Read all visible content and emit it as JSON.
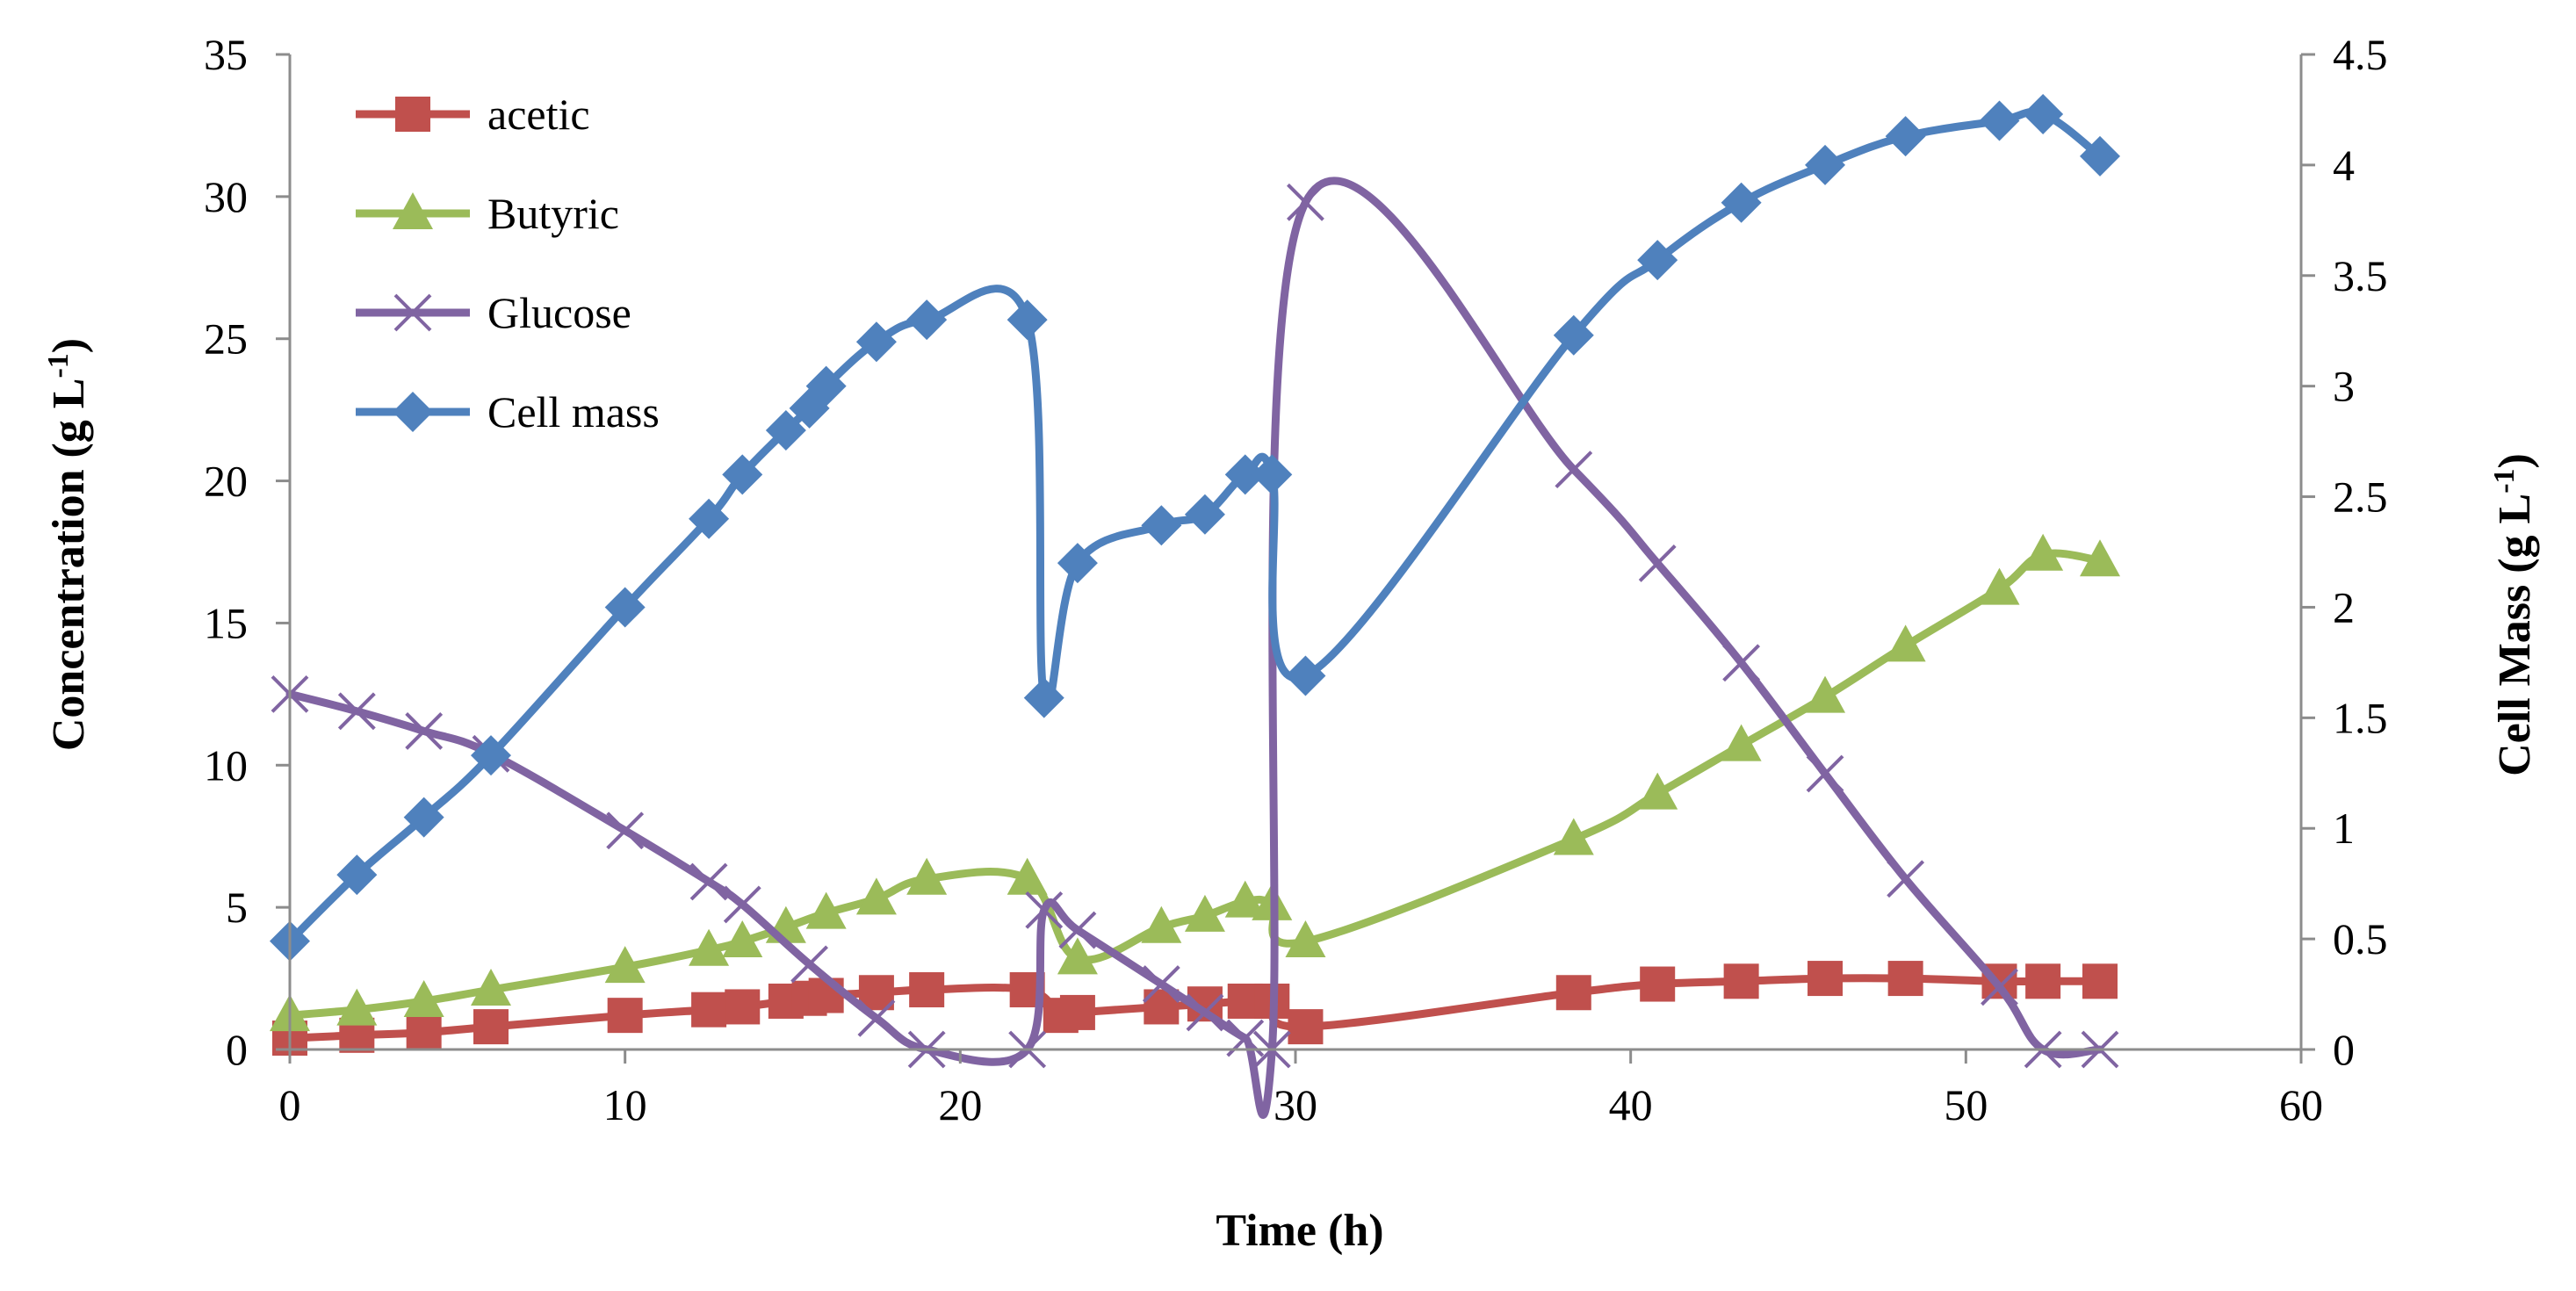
{
  "chart_data": {
    "type": "line",
    "xlabel": "Time (h)",
    "ylabel_left": {
      "main": "Concentration (g L",
      "sup": "-1",
      "end": ")"
    },
    "ylabel_right": {
      "main": "Cell Mass (g  L",
      "sup": "-1",
      "end": ")"
    },
    "xlim": [
      0,
      60
    ],
    "ylim_left": [
      0,
      35
    ],
    "ylim_right": [
      0,
      4.5
    ],
    "x_ticks": [
      "0",
      "10",
      "20",
      "30",
      "40",
      "50",
      "60"
    ],
    "y_left_ticks": [
      "0",
      "5",
      "10",
      "15",
      "20",
      "25",
      "30",
      "35"
    ],
    "y_right_ticks": [
      "0",
      "0.5",
      "1",
      "1.5",
      "2",
      "2.5",
      "3",
      "3.5",
      "4",
      "4.5"
    ],
    "legend_position": "top-left",
    "series": [
      {
        "name": "acetic",
        "axis": "left",
        "color": "#c0504d",
        "marker": "square",
        "x": [
          0,
          2,
          4,
          6,
          10,
          12.5,
          13.5,
          14.8,
          15.5,
          16,
          17.5,
          19,
          22,
          23,
          23.5,
          26,
          27.3,
          28.5,
          29.3,
          30.3,
          38.3,
          40.8,
          43.3,
          45.8,
          48.2,
          51,
          52.3,
          54
        ],
        "y": [
          0.4,
          0.5,
          0.6,
          0.8,
          1.2,
          1.4,
          1.5,
          1.7,
          1.8,
          1.9,
          2.0,
          2.1,
          2.1,
          1.2,
          1.3,
          1.5,
          1.6,
          1.7,
          1.7,
          0.8,
          2.0,
          2.3,
          2.4,
          2.5,
          2.5,
          2.4,
          2.4,
          2.4
        ]
      },
      {
        "name": "Butyric",
        "axis": "left",
        "color": "#9bbb59",
        "marker": "triangle",
        "x": [
          0,
          2,
          4,
          6,
          10,
          12.5,
          13.5,
          14.8,
          16,
          17.5,
          19,
          22,
          23.5,
          26,
          27.3,
          28.5,
          29.3,
          30.3,
          38.3,
          40.8,
          43.3,
          45.8,
          48.2,
          51,
          52.3,
          54
        ],
        "y": [
          1.2,
          1.4,
          1.7,
          2.1,
          2.9,
          3.5,
          3.8,
          4.3,
          4.8,
          5.3,
          6.0,
          6.0,
          3.2,
          4.3,
          4.7,
          5.2,
          5.1,
          3.8,
          7.4,
          9.0,
          10.7,
          12.4,
          14.2,
          16.2,
          17.4,
          17.2
        ]
      },
      {
        "name": "Glucose",
        "axis": "left",
        "color": "#8064a2",
        "marker": "x",
        "x": [
          0,
          2,
          4,
          6,
          10,
          12.5,
          13.5,
          15.5,
          17.5,
          19,
          22,
          22.5,
          23.5,
          26,
          27.3,
          28.5,
          29.3,
          30.3,
          38.3,
          40.8,
          43.3,
          45.8,
          48.2,
          51,
          52.3,
          54
        ],
        "y": [
          12.5,
          11.9,
          11.2,
          10.4,
          7.7,
          5.9,
          5.1,
          3.0,
          1.1,
          0.0,
          0.0,
          4.9,
          4.2,
          2.3,
          1.3,
          0.4,
          0.0,
          29.8,
          20.4,
          17.1,
          13.6,
          9.7,
          6.0,
          2.2,
          0.0,
          0.0
        ]
      },
      {
        "name": "Cell mass",
        "axis": "right",
        "color": "#4f81bd",
        "marker": "diamond",
        "x": [
          0,
          2,
          4,
          6,
          10,
          12.5,
          13.5,
          14.8,
          15.5,
          16,
          17.5,
          19,
          22,
          22.5,
          23.5,
          26,
          27.3,
          28.5,
          29.3,
          30.3,
          38.3,
          40.8,
          43.3,
          45.8,
          48.2,
          51,
          52.3,
          54
        ],
        "y": [
          0.49,
          0.79,
          1.05,
          1.33,
          2.0,
          2.4,
          2.6,
          2.8,
          2.9,
          3.0,
          3.2,
          3.3,
          3.3,
          1.59,
          2.2,
          2.37,
          2.42,
          2.6,
          2.6,
          1.69,
          3.23,
          3.57,
          3.83,
          4.0,
          4.13,
          4.2,
          4.23,
          4.04
        ]
      }
    ]
  }
}
